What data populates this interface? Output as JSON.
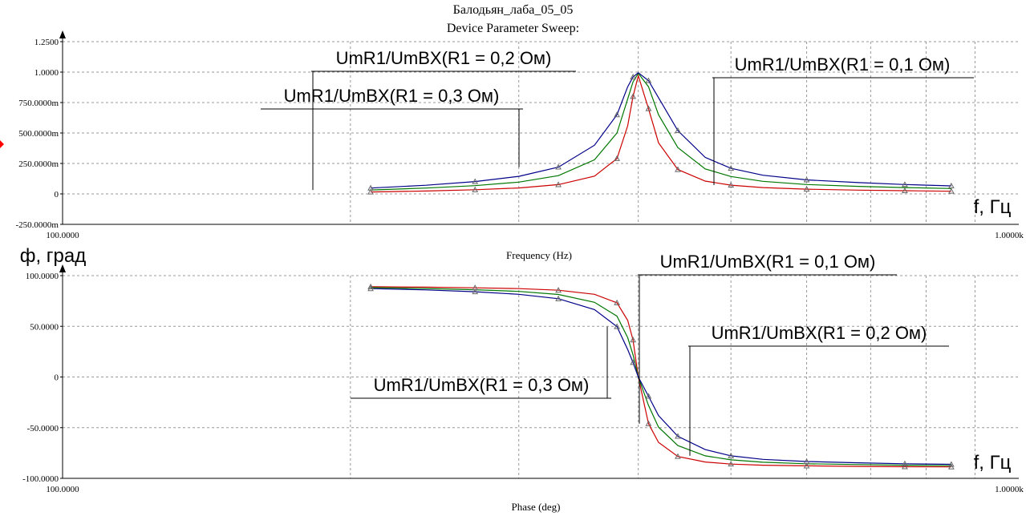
{
  "title": "Балодьян_лаба_05_05",
  "subtitle": "Device Parameter Sweep:",
  "colors": {
    "r1_0_1": "#cc0000",
    "r1_0_2": "#007700",
    "r1_0_3": "#000088",
    "grid": "#999999",
    "axis": "#000000",
    "marker": "#666666"
  },
  "chart_data": [
    {
      "type": "line",
      "xscale": "log",
      "xlim": [
        100,
        1000
      ],
      "ylim": [
        -0.25,
        1.25
      ],
      "x_tick_labels": [
        "100.0000",
        "1.0000k"
      ],
      "y_ticks": [
        -0.25,
        0,
        0.25,
        0.5,
        0.75,
        1.0,
        1.25
      ],
      "y_tick_labels": [
        "-250.0000m",
        "0",
        "250.0000m",
        "500.0000m",
        "750.0000m",
        "1.0000",
        "1.2500"
      ],
      "xlabel": "Frequency (Hz)",
      "unit_label": "f, Гц",
      "grid": true,
      "x": [
        210,
        240,
        270,
        300,
        330,
        360,
        380,
        390,
        395,
        400,
        410,
        420,
        440,
        470,
        500,
        540,
        600,
        680,
        760,
        850
      ],
      "series": [
        {
          "name": "UmR1/UmBX(R1 = 0,1 Ом)",
          "color": "#cc0000",
          "values": [
            0.016,
            0.024,
            0.034,
            0.049,
            0.076,
            0.146,
            0.29,
            0.56,
            0.8,
            0.97,
            0.7,
            0.42,
            0.2,
            0.105,
            0.072,
            0.052,
            0.039,
            0.031,
            0.026,
            0.022
          ]
        },
        {
          "name": "UmR1/UmBX(R1 = 0,2 Ом)",
          "color": "#007700",
          "values": [
            0.032,
            0.048,
            0.068,
            0.097,
            0.15,
            0.28,
            0.5,
            0.78,
            0.92,
            0.99,
            0.88,
            0.65,
            0.38,
            0.205,
            0.143,
            0.103,
            0.077,
            0.062,
            0.052,
            0.044
          ]
        },
        {
          "name": "UmR1/UmBX(R1 = 0,3 Ом)",
          "color": "#000088",
          "values": [
            0.048,
            0.071,
            0.101,
            0.144,
            0.22,
            0.4,
            0.65,
            0.88,
            0.96,
            0.995,
            0.93,
            0.79,
            0.52,
            0.3,
            0.21,
            0.153,
            0.115,
            0.093,
            0.077,
            0.066
          ]
        }
      ],
      "annotations": [
        {
          "text": "UmR1/UmBX(R1 = 0,1 Ом)",
          "series": 0
        },
        {
          "text": "UmR1/UmBX(R1 = 0,2 Ом)",
          "series": 1
        },
        {
          "text": "UmR1/UmBX(R1 = 0,3 Ом)",
          "series": 2
        }
      ]
    },
    {
      "type": "line",
      "xscale": "log",
      "xlim": [
        100,
        1000
      ],
      "ylim": [
        -100,
        100
      ],
      "x_tick_labels": [
        "100.0000",
        "1.0000k"
      ],
      "y_ticks": [
        -100,
        -50,
        0,
        50,
        100
      ],
      "y_tick_labels": [
        "-100.0000",
        "-50.0000",
        "0",
        "50.0000",
        "100.0000"
      ],
      "xlabel": "Phase (deg)",
      "unit_label": "f, Гц",
      "ylabel": "ф, град",
      "grid": true,
      "x": [
        210,
        240,
        270,
        300,
        330,
        360,
        380,
        390,
        395,
        400,
        410,
        420,
        440,
        470,
        500,
        540,
        600,
        680,
        760,
        850
      ],
      "series": [
        {
          "name": "UmR1/UmBX(R1 = 0,1 Ом)",
          "color": "#cc0000",
          "values": [
            89.0,
            88.6,
            88.0,
            87.2,
            85.6,
            81.6,
            73.2,
            55.8,
            36.6,
            0,
            -46.0,
            -64.5,
            -78.4,
            -83.9,
            -85.9,
            -87.0,
            -87.7,
            -88.2,
            -88.5,
            -88.7
          ]
        },
        {
          "name": "UmR1/UmBX(R1 = 0,2 Ом)",
          "color": "#007700",
          "values": [
            88.2,
            87.3,
            86.1,
            84.4,
            81.4,
            73.7,
            60.0,
            38.8,
            22.0,
            0,
            -28.0,
            -49.5,
            -67.7,
            -77.8,
            -81.7,
            -84.1,
            -85.6,
            -86.4,
            -87.0,
            -87.5
          ]
        },
        {
          "name": "UmR1/UmBX(R1 = 0,3 Ом)",
          "color": "#000088",
          "values": [
            87.2,
            85.9,
            84.1,
            81.6,
            77.2,
            66.5,
            49.7,
            27.0,
            14.3,
            0,
            -19.0,
            -38.0,
            -58.5,
            -71.6,
            -77.8,
            -81.3,
            -83.4,
            -84.7,
            -85.6,
            -86.2
          ]
        }
      ],
      "annotations": [
        {
          "text": "UmR1/UmBX(R1 = 0,1 Ом)",
          "series": 0
        },
        {
          "text": "UmR1/UmBX(R1 = 0,2 Ом)",
          "series": 1
        },
        {
          "text": "UmR1/UmBX(R1 = 0,3 Ом)",
          "series": 2
        }
      ]
    }
  ]
}
